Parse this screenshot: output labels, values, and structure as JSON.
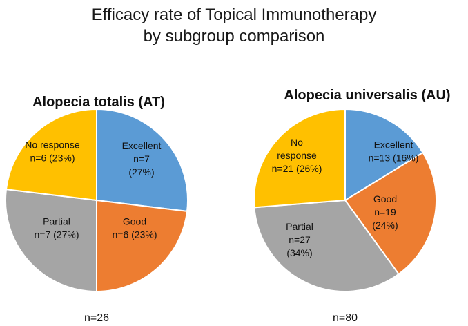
{
  "title_lines": [
    "Efficacy rate of Topical Immunotherapy",
    "by subgroup comparison"
  ],
  "colors": {
    "excellent": "#5B9BD5",
    "good": "#ED7D31",
    "partial": "#A5A5A5",
    "no_response": "#FFC000"
  },
  "chart_data": [
    {
      "type": "pie",
      "title": "Alopecia totalis (AT)",
      "total_label": "n=26",
      "slices": [
        {
          "category": "Excellent",
          "value": 7,
          "percent": 27,
          "color_key": "excellent",
          "label_lines": [
            "Excellent",
            "n=7",
            "(27%)"
          ]
        },
        {
          "category": "Good",
          "value": 6,
          "percent": 23,
          "color_key": "good",
          "label_lines": [
            "Good",
            "n=6 (23%)"
          ]
        },
        {
          "category": "Partial",
          "value": 7,
          "percent": 27,
          "color_key": "partial",
          "label_lines": [
            "Partial",
            "n=7 (27%)"
          ]
        },
        {
          "category": "No response",
          "value": 6,
          "percent": 23,
          "color_key": "no_response",
          "label_lines": [
            "No response",
            "n=6 (23%)"
          ]
        }
      ]
    },
    {
      "type": "pie",
      "title": "Alopecia universalis (AU)",
      "total_label": "n=80",
      "slices": [
        {
          "category": "Excellent",
          "value": 13,
          "percent": 16,
          "color_key": "excellent",
          "label_lines": [
            "Excellent",
            "n=13 (16%)"
          ]
        },
        {
          "category": "Good",
          "value": 19,
          "percent": 24,
          "color_key": "good",
          "label_lines": [
            "Good",
            "n=19",
            "(24%)"
          ]
        },
        {
          "category": "Partial",
          "value": 27,
          "percent": 34,
          "color_key": "partial",
          "label_lines": [
            "Partial",
            "n=27",
            "(34%)"
          ]
        },
        {
          "category": "No response",
          "value": 21,
          "percent": 26,
          "color_key": "no_response",
          "label_lines": [
            "No",
            "response",
            "n=21 (26%)"
          ]
        }
      ]
    }
  ]
}
